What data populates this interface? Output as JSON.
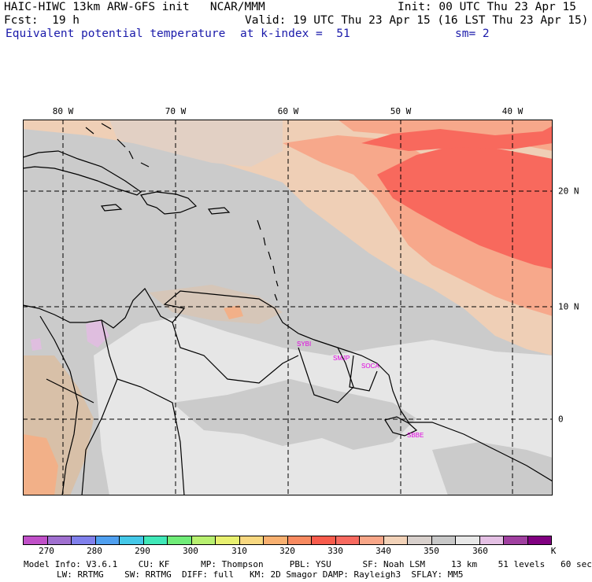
{
  "header": {
    "line1_left": "HAIC-HIWC 13km ARW-GFS init   NCAR/MMM",
    "line1_right": "Init: 00 UTC Thu 23 Apr 15",
    "line2_left": "Fcst:  19 h",
    "line2_right": "Valid: 19 UTC Thu 23 Apr 15 (16 LST Thu 23 Apr 15)",
    "field": "Equivalent potential temperature",
    "level": "at k-index =  51",
    "smoothing": "sm= 2"
  },
  "map": {
    "lon_labels": [
      "80 W",
      "70 W",
      "60 W",
      "50 W",
      "40 W"
    ],
    "lat_labels": [
      "20 N",
      "10 N",
      "0"
    ],
    "stations": [
      "SYBI",
      "SMJP",
      "SOCA",
      "SBBE"
    ],
    "station_color": "#e000e0",
    "grid_color": "#000000",
    "coast_color": "#000000"
  },
  "colorbar": {
    "colors": [
      "#c050c8",
      "#a070d0",
      "#8080ec",
      "#50a0f0",
      "#44c8e8",
      "#40e8b8",
      "#70ec78",
      "#b8f070",
      "#e8f070",
      "#f8d880",
      "#f8b070",
      "#f88a60",
      "#f85c4c",
      "#f86a60",
      "#f8a688",
      "#f2d2b8",
      "#d8d0cc",
      "#c8c8c8",
      "#e8e8e8",
      "#e4c0e4",
      "#a040a0",
      "#800080"
    ],
    "labels": [
      "270",
      "280",
      "290",
      "300",
      "310",
      "320",
      "330",
      "340",
      "350",
      "360"
    ],
    "unit": "K"
  },
  "footer": {
    "line1": "Model Info: V3.6.1    CU: KF      MP: Thompson     PBL: YSU      SF: Noah LSM     13 km    51 levels   60 sec",
    "line2": "LW: RRTMG    SW: RRTMG  DIFF: full   KM: 2D Smagor DAMP: Rayleigh3  SFLAY: MM5"
  }
}
